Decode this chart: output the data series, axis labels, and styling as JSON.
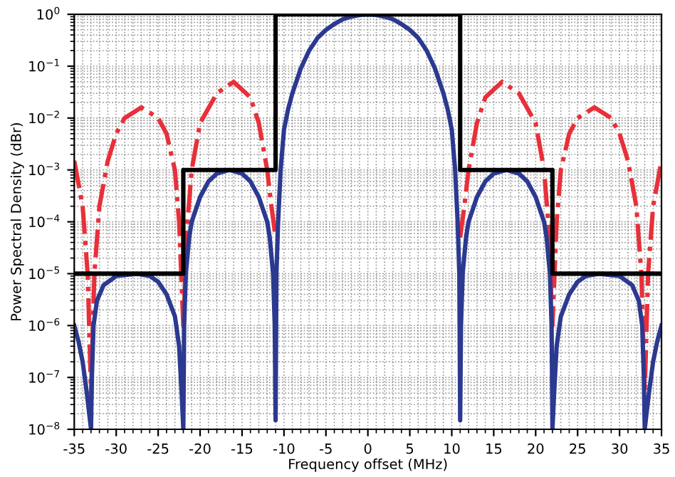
{
  "chart_data": {
    "type": "line",
    "xlabel": "Frequency offset (MHz)",
    "ylabel": "Power Spectral Density (dBr)",
    "log": "y",
    "grid": true,
    "marker": "none",
    "xlim": [
      -35,
      35
    ],
    "xticks": [
      -35,
      -30,
      -25,
      -20,
      -15,
      -10,
      -5,
      0,
      5,
      10,
      15,
      20,
      25,
      30,
      35
    ],
    "ylim": [
      1e-08,
      1
    ],
    "yticks": [
      {
        "value": 1e-08,
        "label": "10$^{−8}$"
      },
      {
        "value": 1e-07,
        "label": "10$^{−7}$"
      },
      {
        "value": 1e-06,
        "label": "10$^{−6}$"
      },
      {
        "value": 1e-05,
        "label": "10$^{−5}$"
      },
      {
        "value": 0.0001,
        "label": "10$^{−4}$"
      },
      {
        "value": 0.001,
        "label": "10$^{−3}$"
      },
      {
        "value": 0.01,
        "label": "10$^{−2}$"
      },
      {
        "value": 0.1,
        "label": "10$^{−1}$"
      },
      {
        "value": 1,
        "label": "10$^{0}$"
      }
    ],
    "series": [
      {
        "color": "#e8303a",
        "line_style": "dashdot",
        "x": [
          -35,
          -34,
          -33.4,
          -33,
          -32.6,
          -32,
          -31,
          -30,
          -29,
          -27,
          -25,
          -24,
          -23,
          -22.5,
          -22,
          -21.5,
          -21,
          -20,
          -18,
          -16,
          -14,
          -13,
          -12,
          -11.5,
          -11,
          0,
          11,
          11.5,
          12,
          13,
          14,
          16,
          18,
          20,
          21,
          21.5,
          22,
          22.5,
          23,
          24,
          25,
          27,
          29,
          30,
          31,
          32,
          32.6,
          33,
          33.4,
          34,
          35
        ],
        "values": [
          0.0015,
          0.0002,
          1e-05,
          5e-08,
          1e-05,
          0.0002,
          0.0015,
          0.005,
          0.01,
          0.016,
          0.01,
          0.005,
          0.001,
          0.0001,
          1e-06,
          0.0001,
          0.001,
          0.008,
          0.03,
          0.05,
          0.025,
          0.008,
          0.001,
          0.0002,
          5e-05,
          null,
          5e-05,
          0.0002,
          0.001,
          0.008,
          0.025,
          0.05,
          0.03,
          0.008,
          0.001,
          0.0001,
          1e-06,
          0.0001,
          0.001,
          0.005,
          0.01,
          0.016,
          0.01,
          0.005,
          0.0015,
          0.0002,
          1e-05,
          5e-08,
          1e-05,
          0.0002,
          0.0015
        ]
      },
      {
        "color": "#2b3990",
        "line_style": "solid",
        "x": [
          -35,
          -34.5,
          -34,
          -33.5,
          -33,
          -32.9,
          -32.7,
          -32.3,
          -31.5,
          -30,
          -27.5,
          -26,
          -25,
          -24,
          -23,
          -22.5,
          -22.2,
          -22,
          -21.9,
          -21.7,
          -21.3,
          -21,
          -20,
          -19,
          -18,
          -16.5,
          -15,
          -14,
          -13,
          -12,
          -11.7,
          -11.3,
          -11.1,
          -11,
          -10.9,
          -10.7,
          -10.4,
          -10,
          -9.5,
          -9,
          -8,
          -7,
          -6,
          -5,
          -4,
          -3,
          -2,
          -1,
          0,
          1,
          2,
          3,
          4,
          5,
          6,
          7,
          8,
          9,
          9.5,
          10,
          10.4,
          10.7,
          10.9,
          11,
          11.1,
          11.3,
          11.7,
          12,
          13,
          14,
          15,
          16.5,
          18,
          19,
          20,
          21,
          21.3,
          21.7,
          21.9,
          22,
          22.2,
          22.5,
          23,
          24,
          25,
          26,
          27.5,
          30,
          31.5,
          32.3,
          32.7,
          32.9,
          33,
          33.5,
          34,
          34.5,
          35
        ],
        "values": [
          1e-06,
          5e-07,
          2e-07,
          5e-08,
          1e-08,
          1e-07,
          1e-06,
          3e-06,
          6e-06,
          9e-06,
          1e-05,
          9e-06,
          7e-06,
          4e-06,
          1.5e-06,
          4e-07,
          5e-08,
          1e-08,
          1e-06,
          1e-05,
          5e-05,
          0.0001,
          0.0003,
          0.0006,
          0.00085,
          0.001,
          0.00085,
          0.0006,
          0.0003,
          0.0001,
          5e-05,
          1e-05,
          1e-06,
          1.5e-08,
          1e-05,
          0.0001,
          0.001,
          0.006,
          0.015,
          0.03,
          0.09,
          0.2,
          0.35,
          0.5,
          0.65,
          0.8,
          0.9,
          0.97,
          1,
          0.97,
          0.9,
          0.8,
          0.65,
          0.5,
          0.35,
          0.2,
          0.09,
          0.03,
          0.015,
          0.006,
          0.001,
          0.0001,
          1e-05,
          1.5e-08,
          1e-06,
          1e-05,
          5e-05,
          0.0001,
          0.0003,
          0.0006,
          0.00085,
          0.001,
          0.00085,
          0.0006,
          0.0003,
          0.0001,
          5e-05,
          1e-05,
          1e-06,
          1e-08,
          5e-08,
          4e-07,
          1.5e-06,
          4e-06,
          7e-06,
          9e-06,
          1e-05,
          9e-06,
          6e-06,
          3e-06,
          1e-06,
          1e-07,
          1e-08,
          5e-08,
          2e-07,
          5e-07,
          1e-06
        ]
      },
      {
        "type": "step",
        "color": "#000000",
        "line_style": "solid",
        "x": [
          -35,
          -22,
          -11,
          11,
          22,
          35
        ],
        "values": [
          1e-05,
          0.001,
          1,
          0.001,
          1e-05,
          1e-05
        ]
      }
    ]
  }
}
